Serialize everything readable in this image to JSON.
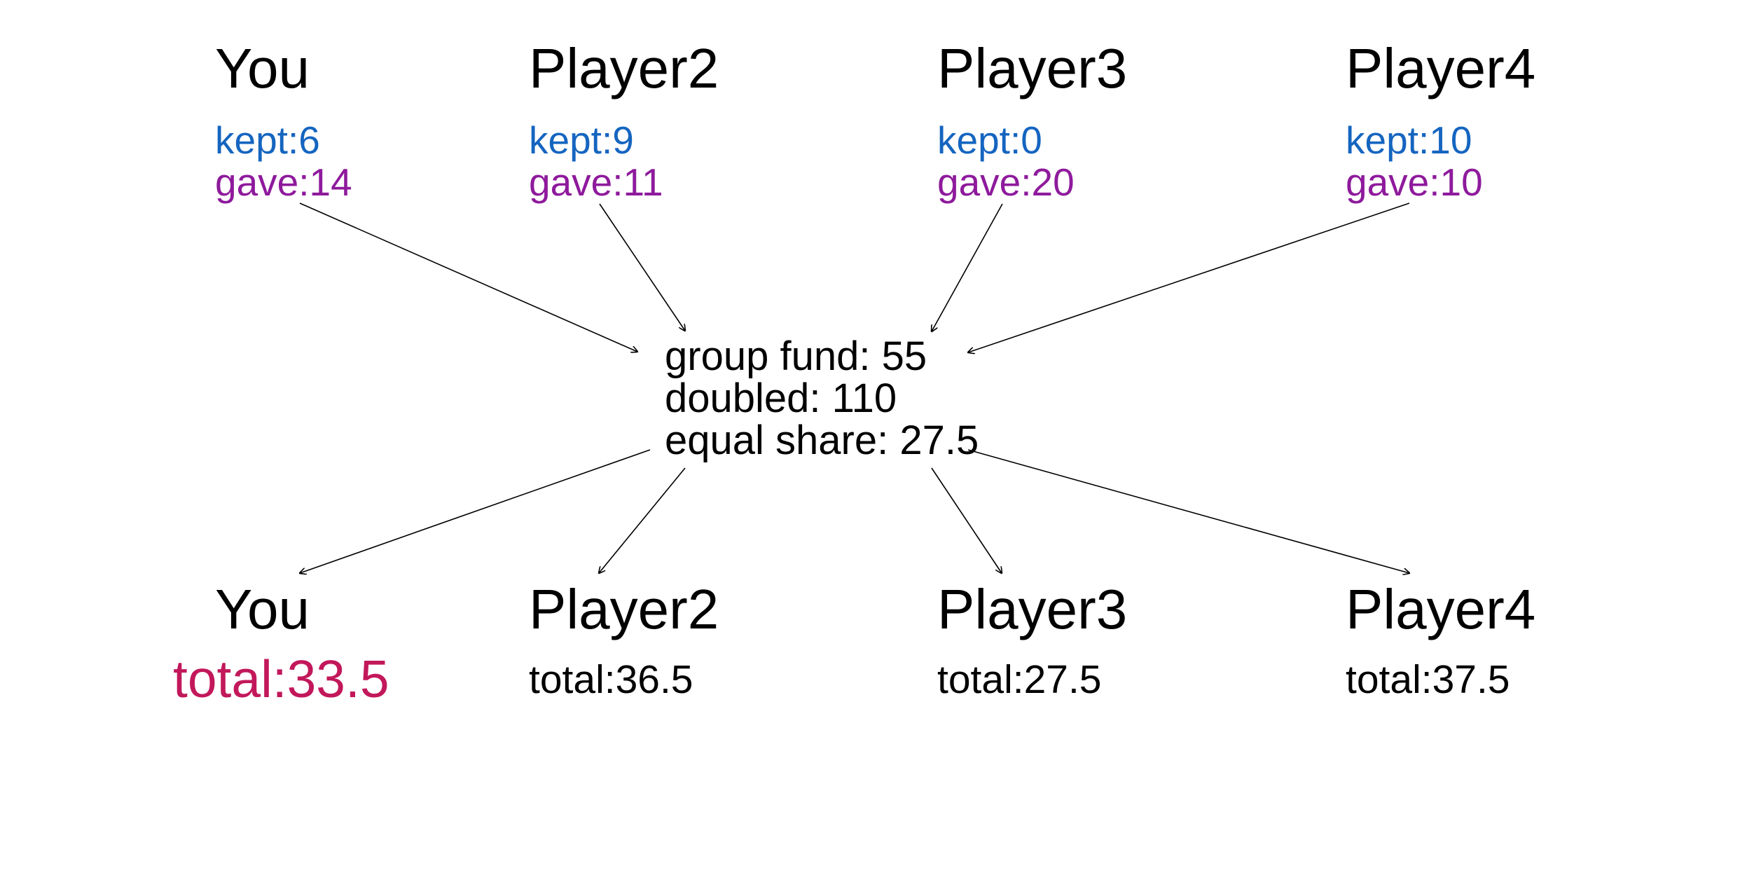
{
  "contributions": [
    {
      "name": "You",
      "kept": "kept:6",
      "gave": "gave:14"
    },
    {
      "name": "Player2",
      "kept": "kept:9",
      "gave": "gave:11"
    },
    {
      "name": "Player3",
      "kept": "kept:0",
      "gave": "gave:20"
    },
    {
      "name": "Player4",
      "kept": "kept:10",
      "gave": "gave:10"
    }
  ],
  "pool": {
    "group_fund": "group fund: 55",
    "doubled": "doubled: 110",
    "equal_share": "equal share: 27.5"
  },
  "results": [
    {
      "name": "You",
      "total": "total:33.5"
    },
    {
      "name": "Player2",
      "total": "total:36.5"
    },
    {
      "name": "Player3",
      "total": "total:27.5"
    },
    {
      "name": "Player4",
      "total": "total:37.5"
    }
  ],
  "colors": {
    "kept": "#1565c0",
    "gave": "#8e1a9c",
    "your_total": "#c2185b",
    "text": "#000000",
    "arrow": "#000000"
  }
}
